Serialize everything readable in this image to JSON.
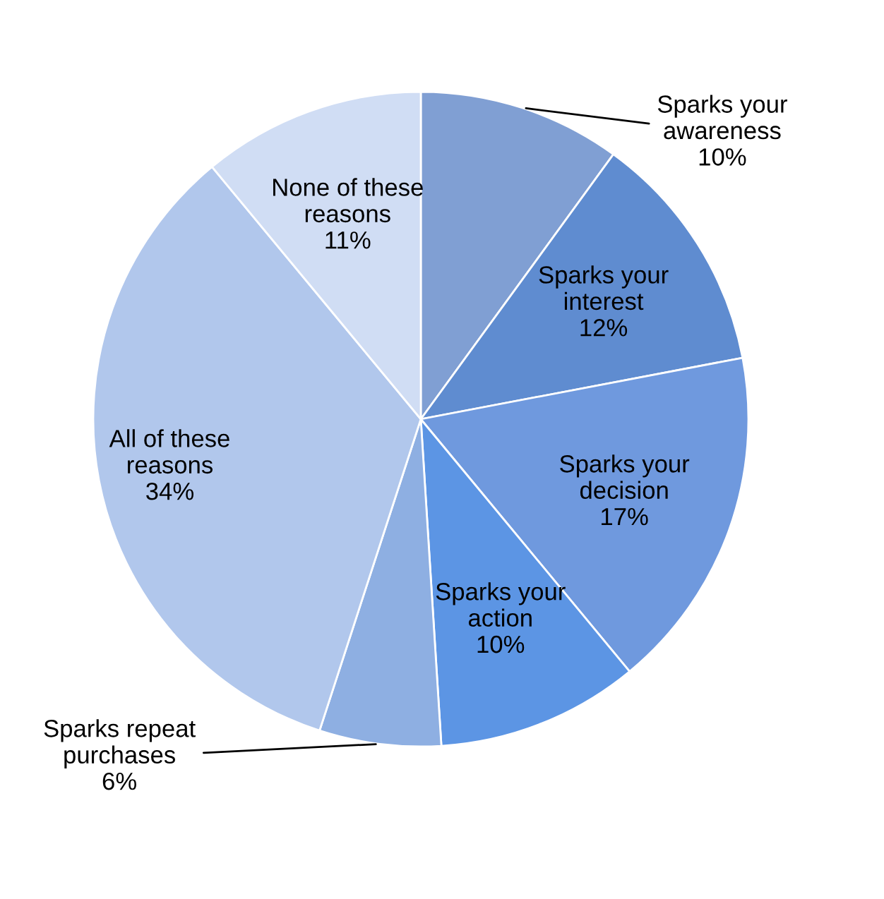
{
  "chart_data": {
    "type": "pie",
    "categories": [
      "Sparks your awareness",
      "Sparks your interest",
      "Sparks your decision",
      "Sparks your action",
      "Sparks repeat purchases",
      "All of these reasons",
      "None of these reasons"
    ],
    "values": [
      10,
      12,
      17,
      10,
      6,
      34,
      11
    ],
    "value_labels": [
      "10%",
      "12%",
      "17%",
      "10%",
      "6%",
      "34%",
      "11%"
    ],
    "colors": [
      "#809fd3",
      "#5f8cd0",
      "#6f99de",
      "#5c95e4",
      "#8eafe2",
      "#b1c7ec",
      "#d0ddf4"
    ]
  }
}
